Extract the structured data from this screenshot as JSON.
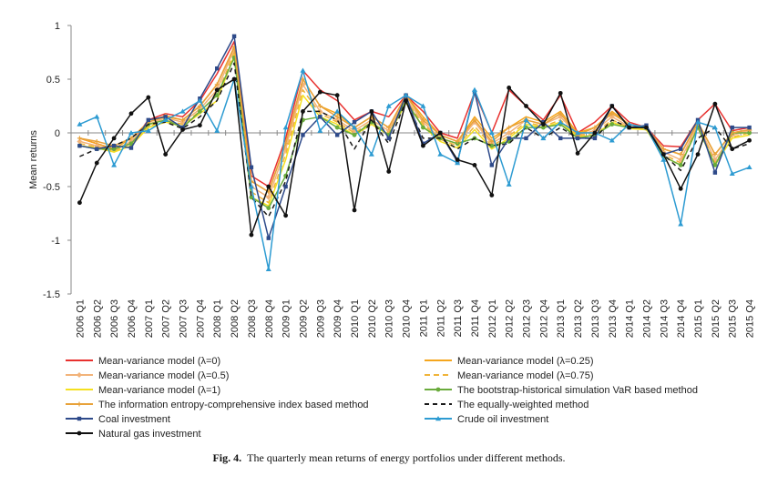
{
  "chart_data": {
    "type": "line",
    "ylabel": "Mean returns",
    "ylim": [
      -1.5,
      1
    ],
    "yticks": [
      "1",
      "0.5",
      "0",
      "-0.5",
      "-1",
      "-1.5"
    ],
    "grid": false,
    "legend_placement": "bottom",
    "x": [
      "2006 Q1",
      "2006 Q2",
      "2006 Q3",
      "2006 Q4",
      "2007 Q1",
      "2007 Q2",
      "2007 Q3",
      "2007 Q4",
      "2008 Q1",
      "2008 Q2",
      "2008 Q3",
      "2008 Q4",
      "2009 Q1",
      "2009 Q2",
      "2009 Q3",
      "2009 Q4",
      "2010 Q1",
      "2010 Q2",
      "2010 Q3",
      "2010 Q4",
      "2011 Q1",
      "2011 Q2",
      "2011 Q3",
      "2011 Q4",
      "2012 Q1",
      "2012 Q2",
      "2012 Q3",
      "2012 Q4",
      "2013 Q1",
      "2013 Q2",
      "2013 Q3",
      "2013 Q4",
      "2014 Q1",
      "2014 Q2",
      "2014 Q3",
      "2014 Q4",
      "2015 Q1",
      "2015 Q2",
      "2015 Q3",
      "2015 Q4"
    ],
    "series": [
      {
        "name": "Mean-variance model (λ=0)",
        "color": "#e8312f",
        "dash": "",
        "marker": "none",
        "values": [
          -0.05,
          -0.1,
          -0.15,
          -0.1,
          0.12,
          0.18,
          0.15,
          0.3,
          0.55,
          0.85,
          -0.4,
          -0.5,
          -0.05,
          0.58,
          0.4,
          0.3,
          0.12,
          0.2,
          0.15,
          0.35,
          0.2,
          0.0,
          -0.05,
          0.38,
          0.0,
          0.4,
          0.25,
          0.12,
          0.35,
          0.0,
          0.1,
          0.25,
          0.1,
          0.05,
          -0.12,
          -0.13,
          0.12,
          0.27,
          0.02,
          0.05
        ]
      },
      {
        "name": "Mean-variance model (λ=0.25)",
        "color": "#f5a61e",
        "dash": "",
        "marker": "none",
        "values": [
          -0.05,
          -0.1,
          -0.15,
          -0.05,
          0.1,
          0.15,
          0.12,
          0.25,
          0.45,
          0.8,
          -0.45,
          -0.55,
          -0.1,
          0.5,
          0.25,
          0.18,
          0.05,
          0.15,
          0.05,
          0.35,
          0.15,
          -0.02,
          -0.08,
          0.15,
          -0.05,
          0.05,
          0.15,
          0.1,
          0.2,
          0.0,
          0.05,
          0.2,
          0.08,
          0.05,
          -0.15,
          -0.2,
          0.1,
          -0.2,
          0.0,
          0.03
        ]
      },
      {
        "name": "Mean-variance model (λ=0.5)",
        "color": "#f2b37a",
        "dash": "",
        "marker": "diamond",
        "values": [
          -0.08,
          -0.12,
          -0.16,
          -0.08,
          0.08,
          0.14,
          0.1,
          0.22,
          0.4,
          0.78,
          -0.5,
          -0.6,
          -0.15,
          0.45,
          0.2,
          0.12,
          0.02,
          0.12,
          0.02,
          0.32,
          0.1,
          -0.05,
          -0.1,
          0.1,
          -0.1,
          0.0,
          0.12,
          0.08,
          0.15,
          -0.02,
          0.02,
          0.15,
          0.06,
          0.04,
          -0.18,
          -0.25,
          0.08,
          -0.25,
          -0.02,
          0.02
        ]
      },
      {
        "name": "Mean-variance model (λ=0.75)",
        "color": "#f0b43a",
        "dash": "6,4",
        "marker": "none",
        "values": [
          -0.1,
          -0.13,
          -0.17,
          -0.1,
          0.06,
          0.12,
          0.08,
          0.2,
          0.35,
          0.75,
          -0.55,
          -0.65,
          -0.2,
          0.4,
          0.18,
          0.1,
          0.0,
          0.1,
          0.0,
          0.3,
          0.08,
          -0.06,
          -0.12,
          0.06,
          -0.12,
          -0.03,
          0.1,
          0.06,
          0.12,
          -0.03,
          0.0,
          0.12,
          0.05,
          0.04,
          -0.2,
          -0.28,
          0.06,
          -0.28,
          -0.04,
          0.0
        ]
      },
      {
        "name": "Mean-variance model (λ=1)",
        "color": "#f5e020",
        "dash": "",
        "marker": "none",
        "values": [
          -0.12,
          -0.14,
          -0.18,
          -0.12,
          0.05,
          0.1,
          0.06,
          0.18,
          0.3,
          0.72,
          -0.6,
          -0.68,
          -0.25,
          0.35,
          0.15,
          0.08,
          -0.02,
          0.08,
          -0.02,
          0.28,
          0.06,
          -0.08,
          -0.14,
          0.03,
          -0.15,
          -0.05,
          0.08,
          0.05,
          0.1,
          -0.04,
          -0.02,
          0.1,
          0.04,
          0.03,
          -0.22,
          -0.3,
          0.05,
          -0.3,
          -0.05,
          -0.02
        ]
      },
      {
        "name": "The bootstrap-historical simulation VaR based method",
        "color": "#6aab3c",
        "dash": "",
        "marker": "circle",
        "values": [
          -0.12,
          -0.15,
          -0.15,
          -0.1,
          0.08,
          0.12,
          0.05,
          0.2,
          0.35,
          0.7,
          -0.6,
          -0.7,
          -0.4,
          0.12,
          0.15,
          0.05,
          -0.02,
          0.1,
          -0.02,
          0.3,
          0.05,
          -0.05,
          -0.1,
          -0.05,
          -0.12,
          -0.08,
          0.05,
          0.05,
          0.08,
          -0.05,
          -0.02,
          0.08,
          0.05,
          0.05,
          -0.22,
          -0.3,
          0.05,
          -0.3,
          0.0,
          0.0
        ]
      },
      {
        "name": "The information entropy-comprehensive index based method",
        "color": "#e8a23a",
        "dash": "",
        "marker": "plus",
        "values": [
          -0.05,
          -0.08,
          -0.12,
          -0.05,
          0.1,
          0.16,
          0.12,
          0.25,
          0.45,
          0.8,
          -0.45,
          -0.55,
          -0.1,
          0.5,
          0.25,
          0.15,
          0.05,
          0.15,
          0.05,
          0.35,
          0.12,
          -0.02,
          -0.08,
          0.12,
          -0.08,
          0.05,
          0.12,
          0.08,
          0.18,
          -0.02,
          0.05,
          0.18,
          0.08,
          0.05,
          -0.15,
          -0.2,
          0.1,
          -0.2,
          0.0,
          0.03
        ]
      },
      {
        "name": "The equally-weighted method",
        "color": "#1a1a1a",
        "dash": "5,4",
        "marker": "none",
        "values": [
          -0.22,
          -0.15,
          -0.12,
          -0.05,
          0.08,
          0.1,
          0.04,
          0.15,
          0.3,
          0.65,
          -0.6,
          -0.78,
          -0.45,
          0.2,
          0.2,
          0.12,
          -0.15,
          0.12,
          -0.1,
          0.3,
          -0.05,
          -0.05,
          -0.15,
          -0.05,
          -0.12,
          -0.1,
          0.05,
          -0.05,
          0.05,
          -0.05,
          -0.05,
          0.12,
          0.05,
          0.05,
          -0.2,
          -0.35,
          -0.05,
          0.05,
          -0.15,
          -0.1
        ]
      },
      {
        "name": "Coal investment",
        "color": "#2e4a8a",
        "dash": "",
        "marker": "square",
        "values": [
          -0.12,
          -0.15,
          -0.12,
          -0.14,
          0.12,
          0.15,
          0.05,
          0.32,
          0.6,
          0.9,
          -0.32,
          -0.98,
          -0.5,
          -0.02,
          0.15,
          -0.02,
          0.1,
          0.2,
          -0.05,
          0.35,
          -0.1,
          0.0,
          -0.27,
          0.38,
          -0.3,
          -0.05,
          -0.05,
          0.1,
          -0.05,
          -0.05,
          -0.05,
          0.25,
          0.05,
          0.07,
          -0.2,
          -0.15,
          0.12,
          -0.37,
          0.05,
          0.05
        ]
      },
      {
        "name": "Crude oil investment",
        "color": "#2d9bd2",
        "dash": "",
        "marker": "triangle",
        "values": [
          0.08,
          0.15,
          -0.3,
          0.0,
          0.02,
          0.12,
          0.2,
          0.3,
          0.02,
          0.5,
          -0.5,
          -1.27,
          0.05,
          0.58,
          0.02,
          0.2,
          0.05,
          -0.2,
          0.25,
          0.35,
          0.25,
          -0.2,
          -0.28,
          0.4,
          0.0,
          -0.48,
          0.12,
          -0.05,
          0.1,
          0.0,
          0.0,
          -0.07,
          0.08,
          0.05,
          -0.25,
          -0.85,
          0.1,
          0.05,
          -0.38,
          -0.32
        ]
      },
      {
        "name": "Natural gas investment",
        "color": "#111111",
        "dash": "",
        "marker": "circle",
        "values": [
          -0.65,
          -0.28,
          -0.05,
          0.18,
          0.33,
          -0.2,
          0.03,
          0.07,
          0.4,
          0.5,
          -0.95,
          -0.5,
          -0.77,
          0.2,
          0.38,
          0.35,
          -0.72,
          0.2,
          -0.36,
          0.3,
          -0.12,
          0.0,
          -0.25,
          -0.3,
          -0.58,
          0.42,
          0.25,
          0.08,
          0.37,
          -0.19,
          0.0,
          0.25,
          0.05,
          0.05,
          -0.2,
          -0.52,
          -0.2,
          0.27,
          -0.15,
          -0.07
        ]
      }
    ]
  },
  "caption": {
    "label": "Fig. 4.",
    "text": "The quarterly mean returns of energy portfolios under different methods."
  }
}
